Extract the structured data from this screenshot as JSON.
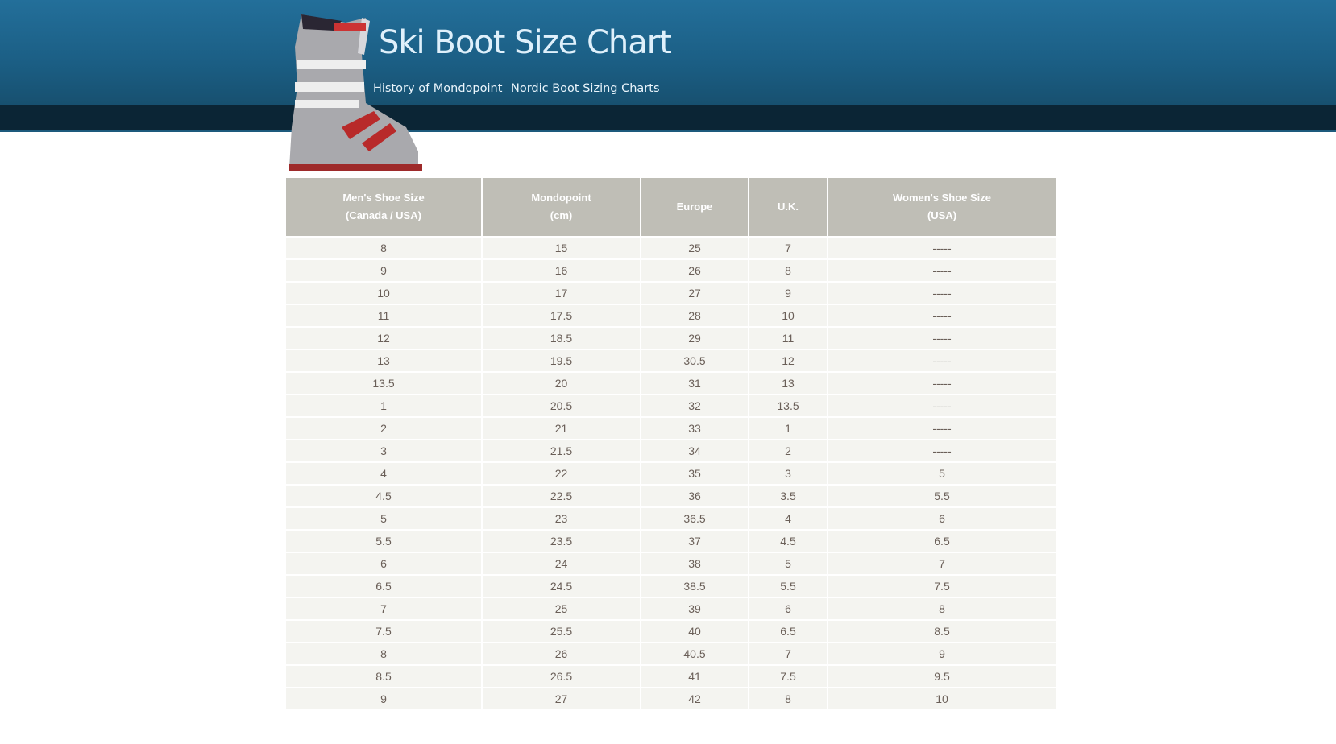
{
  "header": {
    "title": "Ski Boot Size Chart",
    "nav": [
      "History of Mondopoint",
      "Nordic Boot Sizing Charts"
    ]
  },
  "colors": {
    "header": "#1d6189",
    "band": "#0b2535",
    "th_bg": "#bfbeb6",
    "cell_bg": "#f4f4f0"
  },
  "table": {
    "headers": [
      [
        "Men's Shoe Size",
        "(Canada / USA)"
      ],
      [
        "Mondopoint",
        "(cm)"
      ],
      [
        "Europe",
        ""
      ],
      [
        "U.K.",
        ""
      ],
      [
        "Women's Shoe Size",
        "(USA)"
      ]
    ],
    "rows": [
      [
        "8",
        "15",
        "25",
        "7",
        "-----"
      ],
      [
        "9",
        "16",
        "26",
        "8",
        "-----"
      ],
      [
        "10",
        "17",
        "27",
        "9",
        "-----"
      ],
      [
        "11",
        "17.5",
        "28",
        "10",
        "-----"
      ],
      [
        "12",
        "18.5",
        "29",
        "11",
        "-----"
      ],
      [
        "13",
        "19.5",
        "30.5",
        "12",
        "-----"
      ],
      [
        "13.5",
        "20",
        "31",
        "13",
        "-----"
      ],
      [
        "1",
        "20.5",
        "32",
        "13.5",
        "-----"
      ],
      [
        "2",
        "21",
        "33",
        "1",
        "-----"
      ],
      [
        "3",
        "21.5",
        "34",
        "2",
        "-----"
      ],
      [
        "4",
        "22",
        "35",
        "3",
        "5"
      ],
      [
        "4.5",
        "22.5",
        "36",
        "3.5",
        "5.5"
      ],
      [
        "5",
        "23",
        "36.5",
        "4",
        "6"
      ],
      [
        "5.5",
        "23.5",
        "37",
        "4.5",
        "6.5"
      ],
      [
        "6",
        "24",
        "38",
        "5",
        "7"
      ],
      [
        "6.5",
        "24.5",
        "38.5",
        "5.5",
        "7.5"
      ],
      [
        "7",
        "25",
        "39",
        "6",
        "8"
      ],
      [
        "7.5",
        "25.5",
        "40",
        "6.5",
        "8.5"
      ],
      [
        "8",
        "26",
        "40.5",
        "7",
        "9"
      ],
      [
        "8.5",
        "26.5",
        "41",
        "7.5",
        "9.5"
      ],
      [
        "9",
        "27",
        "42",
        "8",
        "10"
      ]
    ]
  }
}
